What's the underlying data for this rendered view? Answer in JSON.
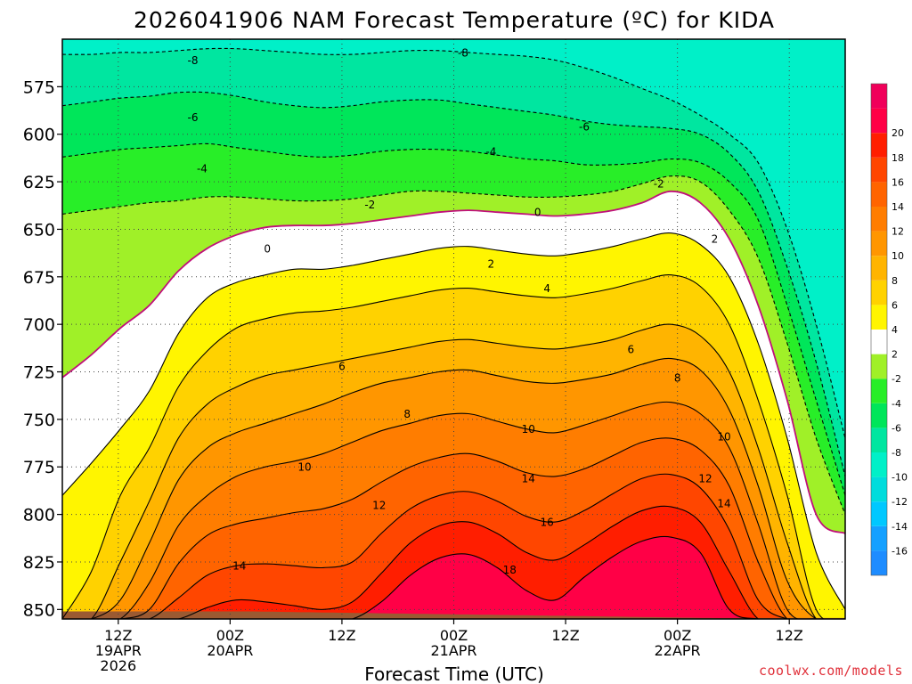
{
  "chart_data": {
    "type": "heatmap",
    "title": "2026041906 NAM Forecast Temperature (ºC) for KIDA",
    "xlabel": "Forecast Time (UTC)",
    "ylabel": "",
    "y_axis": {
      "ticks": [
        575,
        600,
        625,
        650,
        675,
        700,
        725,
        750,
        775,
        800,
        825,
        850
      ],
      "range": [
        550,
        855
      ]
    },
    "x_axis": {
      "range_hours": [
        0,
        84
      ],
      "ticks": [
        {
          "hour": 6,
          "lines": [
            "12Z",
            "19APR",
            "2026"
          ]
        },
        {
          "hour": 18,
          "lines": [
            "00Z",
            "20APR"
          ]
        },
        {
          "hour": 30,
          "lines": [
            "12Z"
          ]
        },
        {
          "hour": 42,
          "lines": [
            "00Z",
            "21APR"
          ]
        },
        {
          "hour": 54,
          "lines": [
            "12Z"
          ]
        },
        {
          "hour": 66,
          "lines": [
            "00Z",
            "22APR"
          ]
        },
        {
          "hour": 78,
          "lines": [
            "12Z"
          ]
        }
      ]
    },
    "legend": {
      "placement": "right",
      "bins": [
        {
          "color": "#1e8cff",
          "label": ""
        },
        {
          "color": "#14a0ff",
          "label": "-16"
        },
        {
          "color": "#00c8ff",
          "label": "-14"
        },
        {
          "color": "#00dcdc",
          "label": "-12"
        },
        {
          "color": "#00f0c8",
          "label": "-10"
        },
        {
          "color": "#00e6a0",
          "label": "-8"
        },
        {
          "color": "#00e65a",
          "label": "-6"
        },
        {
          "color": "#28ee28",
          "label": "-4"
        },
        {
          "color": "#a0f028",
          "label": "-2"
        },
        {
          "color": "#ffffff",
          "label": "2"
        },
        {
          "color": "#fff500",
          "label": "4"
        },
        {
          "color": "#ffd200",
          "label": "6"
        },
        {
          "color": "#ffb400",
          "label": "8"
        },
        {
          "color": "#ff9600",
          "label": "10"
        },
        {
          "color": "#ff7d00",
          "label": "12"
        },
        {
          "color": "#ff6400",
          "label": "14"
        },
        {
          "color": "#ff4600",
          "label": "16"
        },
        {
          "color": "#ff1e00",
          "label": "18"
        },
        {
          "color": "#ff0046",
          "label": "20"
        },
        {
          "color": "#f0005a",
          "label": ""
        }
      ]
    },
    "colors": {
      "ground": "#9b5a32",
      "freezing_line": "#c0107a",
      "contour": "#000000"
    },
    "contours": [
      {
        "level": -8,
        "dashed": true,
        "pressures": [
          558,
          558,
          557,
          557,
          556,
          555,
          555,
          556,
          557,
          558,
          558,
          557,
          556,
          556,
          557,
          558,
          559,
          561,
          565,
          570,
          576,
          582,
          590,
          600,
          615,
          650,
          700,
          760
        ]
      },
      {
        "level": -6,
        "dashed": true,
        "pressures": [
          585,
          583,
          581,
          580,
          578,
          578,
          580,
          583,
          585,
          586,
          585,
          583,
          582,
          582,
          584,
          586,
          588,
          590,
          593,
          595,
          596,
          597,
          600,
          610,
          630,
          670,
          720,
          780
        ]
      },
      {
        "level": -4,
        "dashed": true,
        "pressures": [
          612,
          610,
          608,
          607,
          606,
          605,
          607,
          609,
          611,
          612,
          611,
          609,
          608,
          608,
          609,
          611,
          613,
          614,
          616,
          616,
          615,
          613,
          615,
          625,
          645,
          690,
          740,
          790
        ]
      },
      {
        "level": -2,
        "dashed": true,
        "pressures": [
          642,
          640,
          638,
          636,
          635,
          633,
          633,
          634,
          635,
          635,
          634,
          632,
          630,
          630,
          631,
          632,
          633,
          633,
          632,
          630,
          626,
          622,
          625,
          640,
          665,
          710,
          760,
          800
        ]
      },
      {
        "level": 0,
        "dashed": false,
        "red": true,
        "pressures": [
          728,
          716,
          702,
          690,
          672,
          660,
          653,
          649,
          648,
          648,
          647,
          645,
          643,
          641,
          640,
          641,
          642,
          643,
          642,
          640,
          636,
          630,
          636,
          655,
          690,
          740,
          800,
          810
        ]
      },
      {
        "level": 2,
        "dashed": false,
        "pressures": [
          790,
          773,
          755,
          735,
          705,
          686,
          678,
          674,
          671,
          671,
          669,
          666,
          663,
          660,
          659,
          661,
          663,
          664,
          662,
          659,
          655,
          652,
          658,
          675,
          710,
          760,
          820,
          850
        ]
      },
      {
        "level": 4,
        "dashed": false,
        "pressures": [
          855,
          830,
          790,
          765,
          733,
          714,
          702,
          697,
          694,
          693,
          691,
          688,
          685,
          682,
          681,
          683,
          685,
          686,
          684,
          681,
          677,
          674,
          680,
          700,
          740,
          790,
          850,
          855
        ]
      },
      {
        "level": 6,
        "dashed": false,
        "pressures": [
          855,
          855,
          825,
          793,
          760,
          742,
          733,
          727,
          724,
          721,
          718,
          715,
          712,
          709,
          708,
          710,
          712,
          713,
          711,
          708,
          703,
          700,
          706,
          725,
          765,
          815,
          855,
          855
        ]
      },
      {
        "level": 8,
        "dashed": false,
        "pressures": [
          855,
          855,
          845,
          815,
          782,
          765,
          757,
          752,
          747,
          742,
          736,
          731,
          728,
          725,
          724,
          727,
          730,
          731,
          729,
          726,
          721,
          718,
          724,
          745,
          785,
          835,
          855,
          855
        ]
      },
      {
        "level": 10,
        "dashed": false,
        "pressures": [
          855,
          855,
          855,
          836,
          806,
          790,
          780,
          775,
          772,
          768,
          762,
          756,
          752,
          748,
          747,
          751,
          755,
          757,
          753,
          748,
          743,
          741,
          747,
          765,
          805,
          850,
          855,
          855
        ]
      },
      {
        "level": 12,
        "dashed": false,
        "pressures": [
          855,
          855,
          855,
          850,
          826,
          811,
          805,
          802,
          799,
          797,
          792,
          783,
          775,
          770,
          768,
          772,
          778,
          780,
          776,
          769,
          762,
          760,
          766,
          785,
          825,
          855,
          855,
          855
        ]
      },
      {
        "level": 14,
        "dashed": false,
        "pressures": [
          855,
          855,
          855,
          855,
          844,
          832,
          827,
          826,
          827,
          828,
          825,
          810,
          797,
          790,
          788,
          793,
          801,
          804,
          798,
          789,
          781,
          779,
          786,
          808,
          845,
          855,
          855,
          855
        ]
      },
      {
        "level": 16,
        "dashed": false,
        "pressures": [
          855,
          855,
          855,
          855,
          855,
          849,
          845,
          846,
          848,
          850,
          846,
          831,
          815,
          806,
          804,
          810,
          820,
          824,
          816,
          806,
          798,
          796,
          804,
          830,
          855,
          855,
          855,
          855
        ]
      },
      {
        "level": 18,
        "dashed": false,
        "pressures": [
          855,
          855,
          855,
          855,
          855,
          855,
          855,
          855,
          855,
          855,
          855,
          846,
          832,
          823,
          821,
          828,
          840,
          845,
          833,
          822,
          814,
          812,
          820,
          850,
          855,
          855,
          855,
          855
        ]
      }
    ],
    "contour_labels": [
      {
        "text": "-8",
        "hour": 14,
        "p": 561
      },
      {
        "text": "-8",
        "hour": 43,
        "p": 557
      },
      {
        "text": "-6",
        "hour": 14,
        "p": 591
      },
      {
        "text": "-6",
        "hour": 56,
        "p": 596
      },
      {
        "text": "-4",
        "hour": 15,
        "p": 618
      },
      {
        "text": "-4",
        "hour": 46,
        "p": 609
      },
      {
        "text": "-2",
        "hour": 33,
        "p": 637
      },
      {
        "text": "-2",
        "hour": 64,
        "p": 626
      },
      {
        "text": "0",
        "hour": 22,
        "p": 660
      },
      {
        "text": "0",
        "hour": 51,
        "p": 641
      },
      {
        "text": "2",
        "hour": 46,
        "p": 668
      },
      {
        "text": "2",
        "hour": 70,
        "p": 655
      },
      {
        "text": "4",
        "hour": 52,
        "p": 681
      },
      {
        "text": "6",
        "hour": 30,
        "p": 722
      },
      {
        "text": "6",
        "hour": 61,
        "p": 713
      },
      {
        "text": "8",
        "hour": 37,
        "p": 747
      },
      {
        "text": "8",
        "hour": 66,
        "p": 728
      },
      {
        "text": "10",
        "hour": 26,
        "p": 775
      },
      {
        "text": "10",
        "hour": 50,
        "p": 755
      },
      {
        "text": "10",
        "hour": 71,
        "p": 759
      },
      {
        "text": "12",
        "hour": 34,
        "p": 795
      },
      {
        "text": "12",
        "hour": 69,
        "p": 781
      },
      {
        "text": "14",
        "hour": 19,
        "p": 827
      },
      {
        "text": "14",
        "hour": 50,
        "p": 781
      },
      {
        "text": "14",
        "hour": 71,
        "p": 794
      },
      {
        "text": "16",
        "hour": 52,
        "p": 804
      },
      {
        "text": "18",
        "hour": 48,
        "p": 829
      }
    ]
  },
  "footer": {
    "credit": "coolwx.com/models"
  }
}
